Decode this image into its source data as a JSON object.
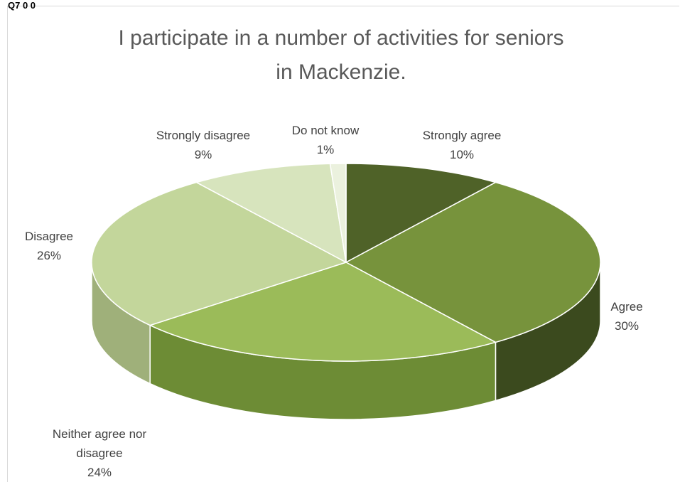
{
  "header": {
    "corner_text": "Q7 0 0"
  },
  "chart_data": {
    "type": "pie",
    "style": "3d",
    "title_lines": [
      "I participate in a number of activities for seniors",
      "in Mackenzie."
    ],
    "categories": [
      "Strongly agree",
      "Agree",
      "Neither agree nor disagree",
      "Disagree",
      "Strongly disagree",
      "Do not know"
    ],
    "values": [
      10,
      30,
      24,
      26,
      9,
      1
    ],
    "value_labels": [
      "10%",
      "30%",
      "24%",
      "26%",
      "9%",
      "1%"
    ],
    "label_lines": [
      [
        "Strongly agree",
        "10%"
      ],
      [
        "Agree",
        "30%"
      ],
      [
        "Neither agree nor",
        "disagree",
        "24%"
      ],
      [
        "Disagree",
        "26%"
      ],
      [
        "Strongly disagree",
        "9%"
      ],
      [
        "Do not know",
        "1%"
      ]
    ],
    "colors": [
      "#4f6228",
      "#77933c",
      "#9bbb59",
      "#c3d69b",
      "#d7e4bd",
      "#ebf1de"
    ],
    "side_colors": [
      "#36451b",
      "#3b4a1e",
      "#6d8c35",
      "#9fb07a",
      "#b3be98",
      "#c8cfb8"
    ]
  }
}
